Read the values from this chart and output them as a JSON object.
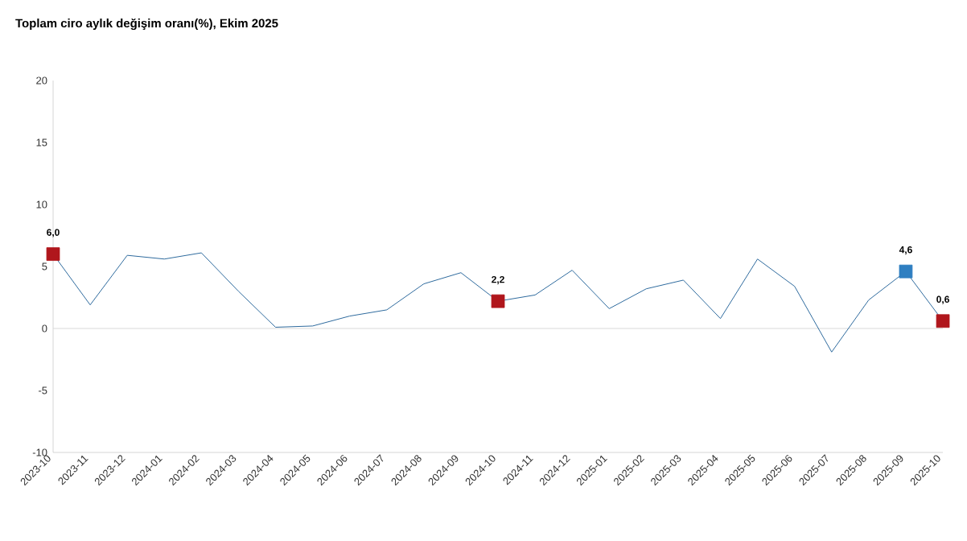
{
  "chart_data": {
    "type": "line",
    "title": "Toplam ciro aylık değişim oranı(%), Ekim 2025",
    "categories": [
      "2023-10",
      "2023-11",
      "2023-12",
      "2024-01",
      "2024-02",
      "2024-03",
      "2024-04",
      "2024-05",
      "2024-06",
      "2024-07",
      "2024-08",
      "2024-09",
      "2024-10",
      "2024-11",
      "2024-12",
      "2025-01",
      "2025-02",
      "2025-03",
      "2025-04",
      "2025-05",
      "2025-06",
      "2025-07",
      "2025-08",
      "2025-09",
      "2025-10"
    ],
    "series": [
      {
        "color": "#2e6a9e",
        "values": [
          6.0,
          1.9,
          5.9,
          5.6,
          6.1,
          3.0,
          0.1,
          0.2,
          1.0,
          1.5,
          3.6,
          4.5,
          2.2,
          2.7,
          4.7,
          1.6,
          3.2,
          3.9,
          0.8,
          5.6,
          3.4,
          -1.9,
          2.3,
          4.6,
          0.6
        ]
      },
      {
        "type": "scatter",
        "marker": "square",
        "values": [
          6.0,
          null,
          null,
          null,
          null,
          null,
          null,
          null,
          null,
          null,
          null,
          null,
          2.2,
          null,
          null,
          null,
          null,
          null,
          null,
          null,
          null,
          null,
          null,
          4.6,
          0.6
        ],
        "colors": [
          "#b0161c",
          null,
          null,
          null,
          null,
          null,
          null,
          null,
          null,
          null,
          null,
          null,
          "#b0161c",
          null,
          null,
          null,
          null,
          null,
          null,
          null,
          null,
          null,
          null,
          "#2f7fc1",
          "#b0161c"
        ],
        "value_labels": [
          "6,0",
          null,
          null,
          null,
          null,
          null,
          null,
          null,
          null,
          null,
          null,
          null,
          "2,2",
          null,
          null,
          null,
          null,
          null,
          null,
          null,
          null,
          null,
          null,
          "4,6",
          "0,6"
        ]
      }
    ],
    "line_style": "solid",
    "ylim": [
      -10,
      20
    ],
    "yticks": [
      -10,
      -5,
      0,
      5,
      10,
      15,
      20
    ],
    "grid": false,
    "ref_lines": [
      {
        "axis": "y",
        "value": 0,
        "color": "#d9d9d9"
      }
    ]
  }
}
